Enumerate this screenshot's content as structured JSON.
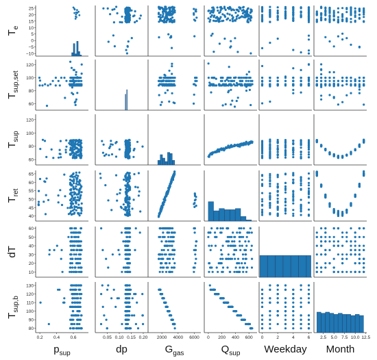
{
  "chart_data": {
    "type": "scatter",
    "kind": "pairplot-matrix",
    "point_color": "#1f77b4",
    "hist_color": "#1f77b4",
    "variables": [
      {
        "id": "Te",
        "label_main": "T",
        "label_sub": "e",
        "ticks": [
          "25",
          "20",
          "15",
          "10",
          "5",
          "0",
          "−5",
          "−10"
        ],
        "range": [
          -12,
          27
        ]
      },
      {
        "id": "Tsup_set",
        "label_main": "T",
        "label_sub": "sup,set",
        "ticks": [
          "120",
          "100",
          "80",
          "60"
        ],
        "range": [
          50,
          128
        ]
      },
      {
        "id": "Tsup",
        "label_main": "T",
        "label_sub": "sup",
        "ticks": [
          "120",
          "100",
          "80",
          "60"
        ],
        "range": [
          52,
          128
        ]
      },
      {
        "id": "Tret",
        "label_main": "T",
        "label_sub": "ret",
        "ticks": [
          "65",
          "60",
          "55",
          "50",
          "45",
          "40"
        ],
        "range": [
          37,
          67
        ]
      },
      {
        "id": "dT",
        "label_main": "dT",
        "label_sub": "",
        "ticks": [
          "60",
          "50",
          "40",
          "30",
          "20",
          "10"
        ],
        "range": [
          4,
          62
        ]
      },
      {
        "id": "Tsup_b",
        "label_main": "T",
        "label_sub": "sup,b",
        "ticks": [
          "130",
          "120",
          "110",
          "100",
          "90",
          "80"
        ],
        "range": [
          75,
          134
        ]
      }
    ],
    "columns": [
      {
        "id": "psup",
        "label_main": "p",
        "label_sub": "sup",
        "ticks": [
          "0.2",
          "0.4",
          "0.6"
        ],
        "range": [
          0.15,
          0.78
        ]
      },
      {
        "id": "dp",
        "label_main": "dp",
        "label_sub": "",
        "ticks": [
          "0.05",
          "0.10",
          "0.15",
          "0.20"
        ],
        "range": [
          0.0,
          0.22
        ]
      },
      {
        "id": "Ggas",
        "label_main": "G",
        "label_sub": "gas",
        "ticks": [
          "2000",
          "4000",
          "6000"
        ],
        "range": [
          300,
          6800
        ]
      },
      {
        "id": "Qsup",
        "label_main": "Q",
        "label_sub": "sup",
        "ticks": [
          "0",
          "200",
          "400",
          "600"
        ],
        "range": [
          -60,
          720
        ]
      },
      {
        "id": "Weekday",
        "label_main": "Weekday",
        "label_sub": "",
        "ticks": [
          "0",
          "2",
          "4",
          "6"
        ],
        "range": [
          -0.4,
          6.4
        ]
      },
      {
        "id": "Month",
        "label_main": "Month",
        "label_sub": "",
        "ticks": [
          "2.5",
          "5.0",
          "7.5",
          "10.0",
          "12.5"
        ],
        "range": [
          0.3,
          12.7
        ]
      }
    ],
    "column_tick_values": {
      "psup": [
        0.2,
        0.4,
        0.6
      ],
      "dp": [
        0.05,
        0.1,
        0.15,
        0.2
      ],
      "Ggas": [
        2000,
        4000,
        6000
      ],
      "Qsup": [
        0,
        200,
        400,
        600
      ],
      "Weekday": [
        0,
        2,
        4,
        6
      ],
      "Month": [
        2.5,
        5.0,
        7.5,
        10.0,
        12.5
      ]
    },
    "row_tick_values": {
      "Te": [
        25,
        20,
        15,
        10,
        5,
        0,
        -5,
        -10
      ],
      "Tsup_set": [
        120,
        100,
        80,
        60
      ],
      "Tsup": [
        120,
        100,
        80,
        60
      ],
      "Tret": [
        65,
        60,
        55,
        50,
        45,
        40
      ],
      "dT": [
        60,
        50,
        40,
        30,
        20,
        10
      ],
      "Tsup_b": [
        130,
        120,
        110,
        100,
        90,
        80
      ]
    },
    "diagonal_histograms": {
      "Te_vs_psup": {
        "bins_x": [
          0.58,
          0.6,
          0.62,
          0.64,
          0.66,
          0.68,
          0.7
        ],
        "counts_frac": [
          0.15,
          0.55,
          0.1,
          0.65,
          0.2,
          0.05
        ]
      },
      "Tsup_set_vs_dp": {
        "bins_x": [
          0.125,
          0.128,
          0.131,
          0.134
        ],
        "counts_frac": [
          0.7,
          0.0,
          0.9
        ]
      },
      "Tsup_vs_Ggas": {
        "bins_x": [
          1500,
          1800,
          2100,
          2400,
          2700,
          3000,
          3300,
          3600
        ],
        "counts_frac": [
          0.2,
          0.45,
          0.3,
          0.15,
          0.55,
          0.5,
          0.2
        ]
      },
      "Tret_vs_Qsup": {
        "bins_x": [
          0,
          80,
          160,
          240,
          320,
          400,
          480,
          560,
          640
        ],
        "counts_frac": [
          0.85,
          0.45,
          0.55,
          0.5,
          0.5,
          0.55,
          0.2,
          0.05
        ]
      },
      "dT_vs_Weekday": {
        "bins_x": [
          -0.3,
          0.7,
          1.7,
          2.7,
          3.7,
          4.7,
          5.7,
          6.3
        ],
        "counts_frac": [
          0.95,
          0.95,
          0.95,
          0.95,
          0.95,
          0.95,
          0.95
        ]
      },
      "Tsup_b_vs_Month": {
        "bins_x": [
          1,
          2,
          3,
          4,
          5,
          6,
          7,
          8,
          9,
          10,
          11,
          12
        ],
        "counts_frac": [
          0.9,
          0.85,
          0.9,
          0.85,
          0.8,
          0.85,
          0.8,
          0.8,
          0.75,
          0.8,
          0.75
        ]
      }
    }
  }
}
